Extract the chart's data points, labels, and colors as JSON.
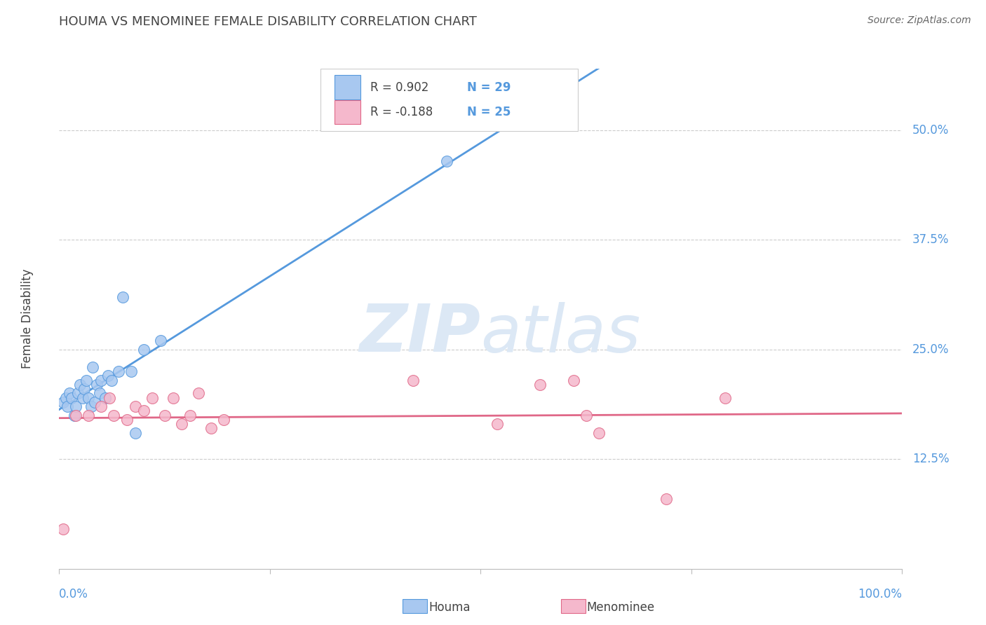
{
  "title": "HOUMA VS MENOMINEE FEMALE DISABILITY CORRELATION CHART",
  "source": "Source: ZipAtlas.com",
  "ylabel": "Female Disability",
  "y_tick_labels": [
    "50.0%",
    "37.5%",
    "25.0%",
    "12.5%"
  ],
  "y_tick_values": [
    0.5,
    0.375,
    0.25,
    0.125
  ],
  "xlim": [
    0.0,
    1.0
  ],
  "ylim": [
    0.0,
    0.57
  ],
  "background_color": "#ffffff",
  "grid_color": "#cccccc",
  "houma_color": "#a8c8f0",
  "menominee_color": "#f5b8cc",
  "houma_line_color": "#5599dd",
  "menominee_line_color": "#e06888",
  "houma_x": [
    0.005,
    0.008,
    0.01,
    0.012,
    0.015,
    0.018,
    0.02,
    0.022,
    0.025,
    0.028,
    0.03,
    0.032,
    0.035,
    0.038,
    0.04,
    0.042,
    0.045,
    0.048,
    0.05,
    0.055,
    0.058,
    0.062,
    0.07,
    0.075,
    0.085,
    0.09,
    0.1,
    0.12,
    0.46
  ],
  "houma_y": [
    0.19,
    0.195,
    0.185,
    0.2,
    0.195,
    0.175,
    0.185,
    0.2,
    0.21,
    0.195,
    0.205,
    0.215,
    0.195,
    0.185,
    0.23,
    0.19,
    0.21,
    0.2,
    0.215,
    0.195,
    0.22,
    0.215,
    0.225,
    0.31,
    0.225,
    0.155,
    0.25,
    0.26,
    0.465
  ],
  "menominee_x": [
    0.005,
    0.02,
    0.035,
    0.05,
    0.06,
    0.065,
    0.08,
    0.09,
    0.1,
    0.11,
    0.125,
    0.135,
    0.145,
    0.155,
    0.165,
    0.18,
    0.195,
    0.42,
    0.52,
    0.57,
    0.61,
    0.625,
    0.64,
    0.72,
    0.79
  ],
  "menominee_y": [
    0.045,
    0.175,
    0.175,
    0.185,
    0.195,
    0.175,
    0.17,
    0.185,
    0.18,
    0.195,
    0.175,
    0.195,
    0.165,
    0.175,
    0.2,
    0.16,
    0.17,
    0.215,
    0.165,
    0.21,
    0.215,
    0.175,
    0.155,
    0.08,
    0.195
  ],
  "watermark_zip": "ZIP",
  "watermark_atlas": "atlas",
  "watermark_color": "#dce8f5",
  "legend_r1": "R = 0.902",
  "legend_n1": "N = 29",
  "legend_r2": "R = -0.188",
  "legend_n2": "N = 25",
  "axis_label_color": "#5599dd",
  "text_color": "#444444",
  "source_color": "#666666"
}
